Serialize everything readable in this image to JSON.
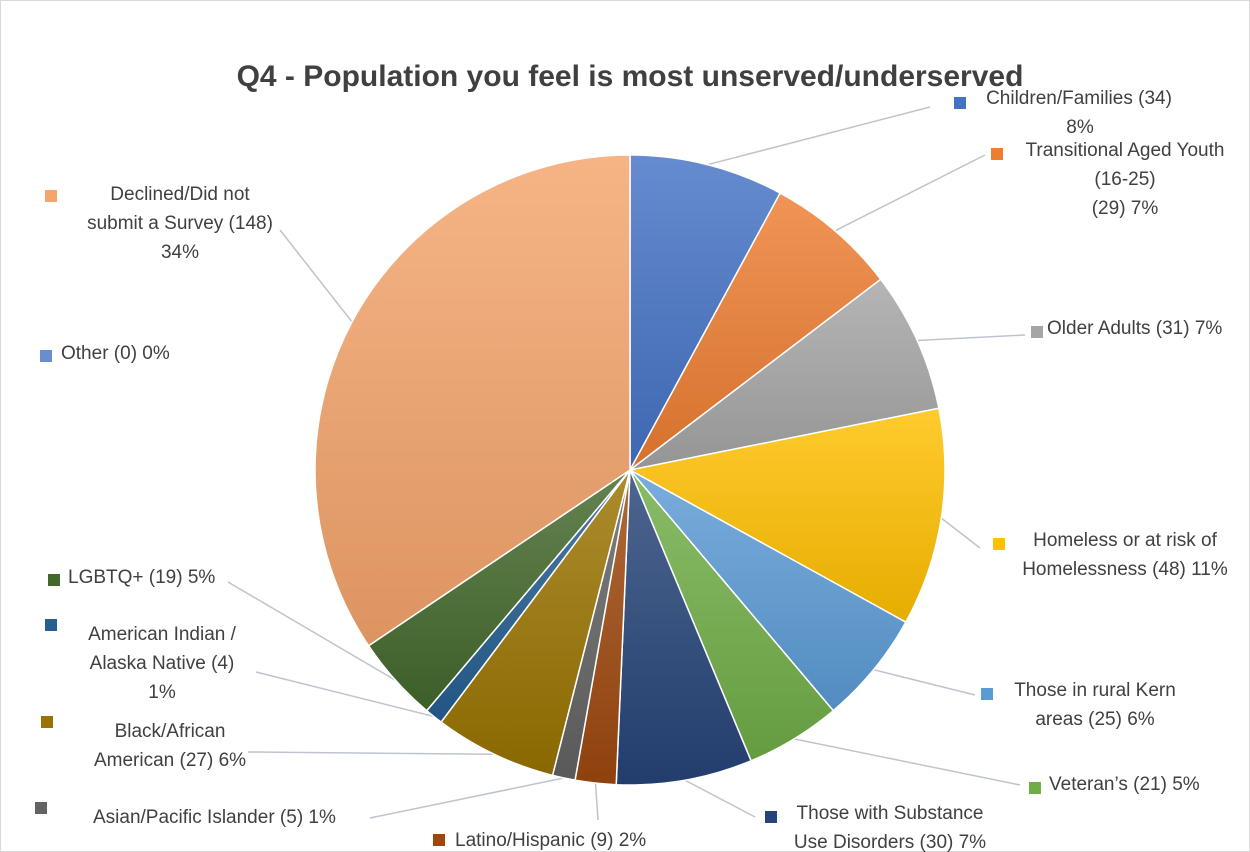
{
  "chart_data": {
    "type": "pie",
    "title": "Q4 - Population you feel is most unserved/underserved",
    "legend": "none",
    "slices": [
      {
        "name": "Children/Families",
        "value": 34,
        "percent": 8,
        "color": "#4472C4",
        "label": [
          "Children/Families (34)",
          "8%"
        ]
      },
      {
        "name": "Transitional Aged Youth (16-25)",
        "value": 29,
        "percent": 7,
        "color": "#ED7D31",
        "label": [
          "Transitional Aged Youth",
          "(16-25)",
          "(29) 7%"
        ]
      },
      {
        "name": "Older Adults",
        "value": 31,
        "percent": 7,
        "color": "#A5A5A5",
        "label": [
          "Older Adults (31) 7%"
        ]
      },
      {
        "name": "Homeless or at risk of Homelessness",
        "value": 48,
        "percent": 11,
        "color": "#FFC000",
        "label": [
          "Homeless or at risk of",
          "Homelessness (48) 11%"
        ]
      },
      {
        "name": "Those in rural Kern areas",
        "value": 25,
        "percent": 6,
        "color": "#5B9BD5",
        "label": [
          "Those in rural Kern",
          "areas (25) 6%"
        ]
      },
      {
        "name": "Veteran's",
        "value": 21,
        "percent": 5,
        "color": "#70AD47",
        "label": [
          "Veteran’s  (21) 5%"
        ]
      },
      {
        "name": "Those with Substance Use Disorders",
        "value": 30,
        "percent": 7,
        "color": "#264478",
        "label": [
          "Those with Substance",
          "Use Disorders (30) 7%"
        ]
      },
      {
        "name": "Latino/Hispanic",
        "value": 9,
        "percent": 2,
        "color": "#9E480E",
        "label": [
          "Latino/Hispanic (9) 2%"
        ]
      },
      {
        "name": "Asian/Pacific Islander",
        "value": 5,
        "percent": 1,
        "color": "#636363",
        "label": [
          "Asian/Pacific Islander (5) 1%"
        ]
      },
      {
        "name": "Black/African American",
        "value": 27,
        "percent": 6,
        "color": "#997300",
        "label": [
          "Black/African",
          "American (27) 6%"
        ]
      },
      {
        "name": "American Indian / Alaska Native",
        "value": 4,
        "percent": 1,
        "color": "#255E91",
        "label": [
          "American Indian /",
          "Alaska Native (4)",
          "1%"
        ]
      },
      {
        "name": "LGBTQ+",
        "value": 19,
        "percent": 5,
        "color": "#43682B",
        "label": [
          "LGBTQ+ (19) 5%"
        ]
      },
      {
        "name": "Declined/Did not submit a Survey",
        "value": 148,
        "percent": 34,
        "color": "#F4A46C",
        "label": [
          "Declined/Did not",
          "submit a Survey (148)",
          "34%"
        ]
      },
      {
        "name": "Other",
        "value": 0,
        "percent": 0,
        "color": "#698ED0",
        "label": [
          "Other (0) 0%"
        ]
      }
    ]
  }
}
